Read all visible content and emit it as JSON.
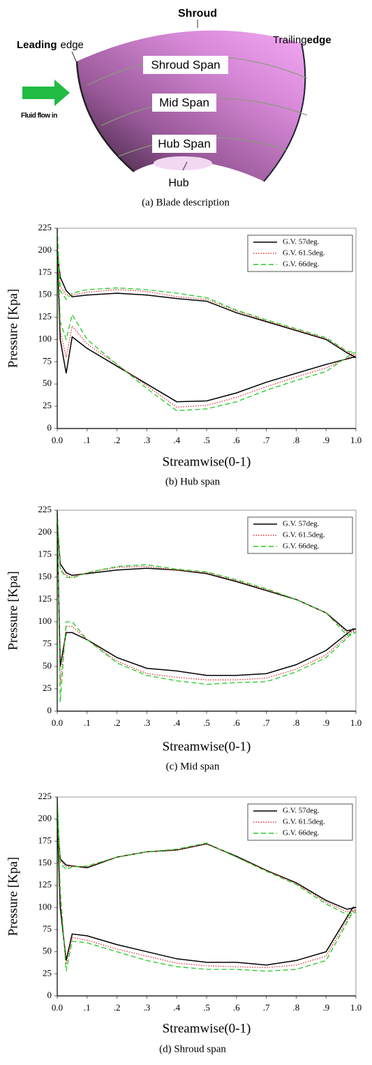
{
  "diagram": {
    "shroud": "Shroud",
    "leading_bold": "Leading",
    "leading_rest": "edge",
    "trailing_rest": "Trailing",
    "trailing_bold": "edge",
    "shroud_span": "Shroud Span",
    "mid_span": "Mid Span",
    "hub_span": "Hub Span",
    "hub": "Hub",
    "flow": "Fluid flow in",
    "caption": "(a)  Blade description"
  },
  "chart_data": [
    {
      "type": "line",
      "caption": "(b)  Hub span",
      "x_label": "Streamwise(0-1)",
      "y_label": "Pressure [Kpa]",
      "x": [
        0,
        0.01,
        0.03,
        0.05,
        0.1,
        0.2,
        0.3,
        0.4,
        0.5,
        0.6,
        0.7,
        0.8,
        0.9,
        0.97,
        1.0,
        0.99,
        0.9,
        0.8,
        0.7,
        0.6,
        0.5,
        0.4,
        0.3,
        0.2,
        0.1,
        0.05,
        0.03,
        0.01,
        0
      ],
      "xlim": [
        0,
        1
      ],
      "ylim": [
        0,
        225
      ],
      "xticks": [
        {
          "value": 0,
          "label": "0.0"
        },
        {
          "value": 0.1,
          "label": ".1"
        },
        {
          "value": 0.2,
          "label": ".2"
        },
        {
          "value": 0.3,
          "label": ".3"
        },
        {
          "value": 0.4,
          "label": ".4"
        },
        {
          "value": 0.5,
          "label": ".5"
        },
        {
          "value": 0.6,
          "label": ".6"
        },
        {
          "value": 0.7,
          "label": ".7"
        },
        {
          "value": 0.8,
          "label": ".8"
        },
        {
          "value": 0.9,
          "label": ".9"
        },
        {
          "value": 1,
          "label": "1.0"
        }
      ],
      "yticks": [
        0,
        25,
        50,
        75,
        100,
        125,
        150,
        175,
        200,
        225
      ],
      "legend": "upper right",
      "series": [
        {
          "name": "G.V. 57deg.",
          "color": "#000000",
          "linestyle": "solid",
          "values": [
            200,
            170,
            155,
            148,
            150,
            152,
            150,
            146,
            143,
            130,
            120,
            110,
            100,
            85,
            80,
            80,
            72,
            62,
            52,
            40,
            31,
            30,
            50,
            70,
            90,
            103,
            62,
            100,
            200
          ]
        },
        {
          "name": "G.V. 61.5deg.",
          "color": "#e03030",
          "linestyle": "dotted",
          "values": [
            210,
            160,
            150,
            150,
            153,
            156,
            154,
            148,
            145,
            132,
            121,
            111,
            101,
            86,
            82,
            82,
            68,
            58,
            47,
            35,
            26,
            24,
            48,
            72,
            95,
            115,
            80,
            110,
            210
          ]
        },
        {
          "name": "G.V. 66deg.",
          "color": "#22cc22",
          "linestyle": "dashed",
          "values": [
            225,
            155,
            145,
            152,
            156,
            158,
            156,
            152,
            147,
            133,
            122,
            112,
            102,
            87,
            85,
            85,
            64,
            54,
            43,
            30,
            22,
            20,
            45,
            72,
            100,
            128,
            100,
            120,
            225
          ]
        }
      ]
    },
    {
      "type": "line",
      "caption": "(c)  Mid span",
      "x_label": "Streamwise(0-1)",
      "y_label": "Pressure [Kpa]",
      "x": [
        0,
        0.01,
        0.03,
        0.05,
        0.1,
        0.2,
        0.3,
        0.4,
        0.5,
        0.6,
        0.7,
        0.8,
        0.9,
        0.97,
        1.0,
        0.99,
        0.9,
        0.8,
        0.7,
        0.6,
        0.5,
        0.4,
        0.3,
        0.2,
        0.1,
        0.05,
        0.03,
        0.01,
        0
      ],
      "xlim": [
        0,
        1
      ],
      "ylim": [
        0,
        225
      ],
      "xticks": [
        {
          "value": 0,
          "label": "0.0"
        },
        {
          "value": 0.1,
          "label": ".1"
        },
        {
          "value": 0.2,
          "label": ".2"
        },
        {
          "value": 0.3,
          "label": ".3"
        },
        {
          "value": 0.4,
          "label": ".4"
        },
        {
          "value": 0.5,
          "label": ".5"
        },
        {
          "value": 0.6,
          "label": ".6"
        },
        {
          "value": 0.7,
          "label": ".7"
        },
        {
          "value": 0.8,
          "label": ".8"
        },
        {
          "value": 0.9,
          "label": ".9"
        },
        {
          "value": 1,
          "label": "1.0"
        }
      ],
      "yticks": [
        0,
        25,
        50,
        75,
        100,
        125,
        150,
        175,
        200,
        225
      ],
      "legend": "upper right",
      "series": [
        {
          "name": "G.V. 57deg.",
          "color": "#000000",
          "linestyle": "solid",
          "values": [
            210,
            165,
            155,
            152,
            154,
            158,
            160,
            158,
            154,
            145,
            135,
            125,
            110,
            90,
            92,
            92,
            68,
            52,
            42,
            40,
            40,
            45,
            48,
            60,
            80,
            88,
            88,
            50,
            210
          ]
        },
        {
          "name": "G.V. 61.5deg.",
          "color": "#e03030",
          "linestyle": "dotted",
          "values": [
            220,
            160,
            152,
            150,
            155,
            161,
            162,
            158,
            155,
            146,
            136,
            125,
            110,
            88,
            90,
            90,
            63,
            47,
            37,
            35,
            35,
            38,
            42,
            56,
            80,
            95,
            95,
            30,
            220
          ]
        },
        {
          "name": "G.V. 66deg.",
          "color": "#22cc22",
          "linestyle": "dashed",
          "values": [
            225,
            158,
            150,
            149,
            155,
            162,
            164,
            159,
            156,
            147,
            137,
            125,
            110,
            85,
            88,
            88,
            60,
            44,
            33,
            32,
            30,
            34,
            40,
            54,
            80,
            100,
            100,
            10,
            225
          ]
        }
      ]
    },
    {
      "type": "line",
      "caption": "(d)  Shroud span",
      "x_label": "Streamwise(0-1)",
      "y_label": "Pressure [Kpa]",
      "x": [
        0,
        0.01,
        0.03,
        0.05,
        0.1,
        0.2,
        0.3,
        0.4,
        0.5,
        0.6,
        0.7,
        0.8,
        0.9,
        0.97,
        1.0,
        0.99,
        0.9,
        0.8,
        0.7,
        0.6,
        0.5,
        0.4,
        0.3,
        0.2,
        0.1,
        0.05,
        0.03,
        0.01,
        0
      ],
      "xlim": [
        0,
        1
      ],
      "ylim": [
        0,
        225
      ],
      "xticks": [
        {
          "value": 0,
          "label": "0.0"
        },
        {
          "value": 0.1,
          "label": ".1"
        },
        {
          "value": 0.2,
          "label": ".2"
        },
        {
          "value": 0.3,
          "label": ".3"
        },
        {
          "value": 0.4,
          "label": ".4"
        },
        {
          "value": 0.5,
          "label": ".5"
        },
        {
          "value": 0.6,
          "label": ".6"
        },
        {
          "value": 0.7,
          "label": ".7"
        },
        {
          "value": 0.8,
          "label": ".8"
        },
        {
          "value": 0.9,
          "label": ".9"
        },
        {
          "value": 1,
          "label": "1.0"
        }
      ],
      "yticks": [
        0,
        25,
        50,
        75,
        100,
        125,
        150,
        175,
        200,
        225
      ],
      "legend": "upper right",
      "series": [
        {
          "name": "G.V. 57deg.",
          "color": "#000000",
          "linestyle": "solid",
          "values": [
            200,
            155,
            148,
            147,
            145,
            157,
            163,
            165,
            172,
            158,
            142,
            128,
            108,
            98,
            100,
            100,
            50,
            40,
            35,
            38,
            38,
            42,
            50,
            58,
            68,
            70,
            40,
            100,
            200
          ]
        },
        {
          "name": "G.V. 61.5deg.",
          "color": "#e03030",
          "linestyle": "dotted",
          "values": [
            210,
            153,
            146,
            147,
            146,
            157,
            163,
            165,
            172,
            157,
            142,
            127,
            106,
            95,
            97,
            97,
            45,
            35,
            32,
            33,
            34,
            37,
            45,
            53,
            63,
            66,
            36,
            110,
            210
          ]
        },
        {
          "name": "G.V. 66deg.",
          "color": "#22cc22",
          "linestyle": "dashed",
          "values": [
            225,
            150,
            143,
            146,
            147,
            157,
            163,
            166,
            173,
            157,
            141,
            126,
            104,
            92,
            95,
            95,
            40,
            30,
            28,
            30,
            30,
            33,
            40,
            50,
            60,
            62,
            28,
            120,
            225
          ]
        }
      ]
    }
  ]
}
